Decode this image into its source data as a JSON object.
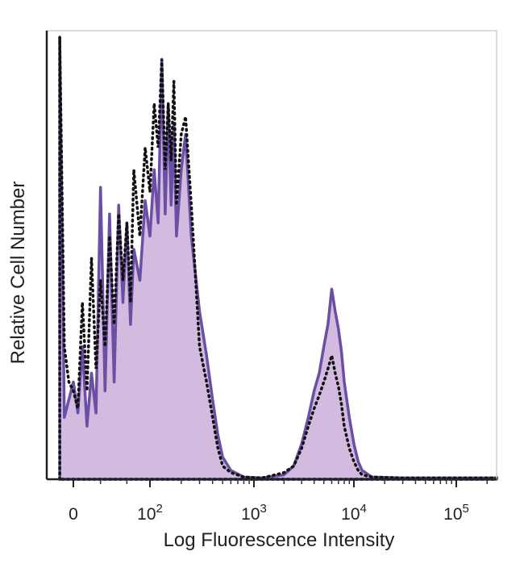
{
  "chart_data": {
    "type": "area",
    "title": "",
    "xlabel": "Log Fluorescence Intensity",
    "ylabel": "Relative Cell Number",
    "x_scale": "biexponential",
    "xlim": [
      -20,
      250000
    ],
    "ylim": [
      0,
      100
    ],
    "grid": false,
    "legend": "none",
    "x_ticks": [
      {
        "value": 0,
        "label": "0",
        "base": "",
        "exp": ""
      },
      {
        "value": 100,
        "label": "10^2",
        "base": "10",
        "exp": "2"
      },
      {
        "value": 1000,
        "label": "10^3",
        "base": "10",
        "exp": "3"
      },
      {
        "value": 10000,
        "label": "10^4",
        "base": "10",
        "exp": "4"
      },
      {
        "value": 100000,
        "label": "10^5",
        "base": "10",
        "exp": "5"
      }
    ],
    "series": [
      {
        "style": "filled",
        "fill": "#cdb4da",
        "stroke": "#6a4fa5",
        "points": [
          [
            -15,
            100
          ],
          [
            -10,
            14
          ],
          [
            -5,
            18
          ],
          [
            0,
            22
          ],
          [
            5,
            15
          ],
          [
            10,
            30
          ],
          [
            15,
            12
          ],
          [
            20,
            24
          ],
          [
            25,
            15
          ],
          [
            30,
            66
          ],
          [
            35,
            20
          ],
          [
            40,
            60
          ],
          [
            45,
            22
          ],
          [
            50,
            62
          ],
          [
            55,
            40
          ],
          [
            60,
            58
          ],
          [
            65,
            35
          ],
          [
            70,
            52
          ],
          [
            80,
            45
          ],
          [
            90,
            63
          ],
          [
            100,
            55
          ],
          [
            110,
            70
          ],
          [
            120,
            58
          ],
          [
            130,
            95
          ],
          [
            140,
            60
          ],
          [
            150,
            85
          ],
          [
            160,
            62
          ],
          [
            170,
            80
          ],
          [
            180,
            55
          ],
          [
            200,
            70
          ],
          [
            220,
            78
          ],
          [
            250,
            55
          ],
          [
            300,
            38
          ],
          [
            350,
            28
          ],
          [
            400,
            18
          ],
          [
            450,
            10
          ],
          [
            500,
            5
          ],
          [
            600,
            2
          ],
          [
            800,
            0.5
          ],
          [
            1200,
            0.3
          ],
          [
            2000,
            1
          ],
          [
            2500,
            3
          ],
          [
            3000,
            8
          ],
          [
            3500,
            14
          ],
          [
            4000,
            20
          ],
          [
            4500,
            24
          ],
          [
            5000,
            30
          ],
          [
            5500,
            35
          ],
          [
            6000,
            43
          ],
          [
            6500,
            38
          ],
          [
            7000,
            34
          ],
          [
            7500,
            29
          ],
          [
            8000,
            22
          ],
          [
            9000,
            14
          ],
          [
            10000,
            8
          ],
          [
            11000,
            4
          ],
          [
            12000,
            2
          ],
          [
            15000,
            0.5
          ],
          [
            30000,
            0.3
          ],
          [
            100000,
            0.3
          ],
          [
            250000,
            0.3
          ]
        ]
      },
      {
        "style": "dotted",
        "fill": "none",
        "stroke": "#111111",
        "points": [
          [
            -15,
            100
          ],
          [
            -10,
            30
          ],
          [
            -5,
            22
          ],
          [
            0,
            20
          ],
          [
            5,
            16
          ],
          [
            10,
            40
          ],
          [
            15,
            20
          ],
          [
            20,
            50
          ],
          [
            25,
            25
          ],
          [
            30,
            45
          ],
          [
            35,
            30
          ],
          [
            40,
            55
          ],
          [
            45,
            35
          ],
          [
            50,
            60
          ],
          [
            55,
            45
          ],
          [
            60,
            58
          ],
          [
            65,
            40
          ],
          [
            70,
            70
          ],
          [
            80,
            55
          ],
          [
            90,
            75
          ],
          [
            100,
            65
          ],
          [
            110,
            85
          ],
          [
            120,
            75
          ],
          [
            130,
            95
          ],
          [
            140,
            70
          ],
          [
            150,
            85
          ],
          [
            160,
            72
          ],
          [
            170,
            90
          ],
          [
            180,
            62
          ],
          [
            200,
            78
          ],
          [
            220,
            82
          ],
          [
            250,
            62
          ],
          [
            300,
            30
          ],
          [
            350,
            22
          ],
          [
            400,
            14
          ],
          [
            450,
            7
          ],
          [
            500,
            3
          ],
          [
            600,
            1.5
          ],
          [
            800,
            0.5
          ],
          [
            1200,
            0.3
          ],
          [
            2000,
            1.5
          ],
          [
            2500,
            3
          ],
          [
            3000,
            7
          ],
          [
            3500,
            12
          ],
          [
            4000,
            16
          ],
          [
            4500,
            19
          ],
          [
            5000,
            22
          ],
          [
            5500,
            25
          ],
          [
            6000,
            28
          ],
          [
            6500,
            24
          ],
          [
            7000,
            21
          ],
          [
            7500,
            17
          ],
          [
            8000,
            12
          ],
          [
            9000,
            7
          ],
          [
            10000,
            4
          ],
          [
            11000,
            2
          ],
          [
            12000,
            1
          ],
          [
            15000,
            0.5
          ],
          [
            30000,
            0.3
          ],
          [
            100000,
            0.3
          ],
          [
            250000,
            0.3
          ]
        ]
      }
    ]
  }
}
